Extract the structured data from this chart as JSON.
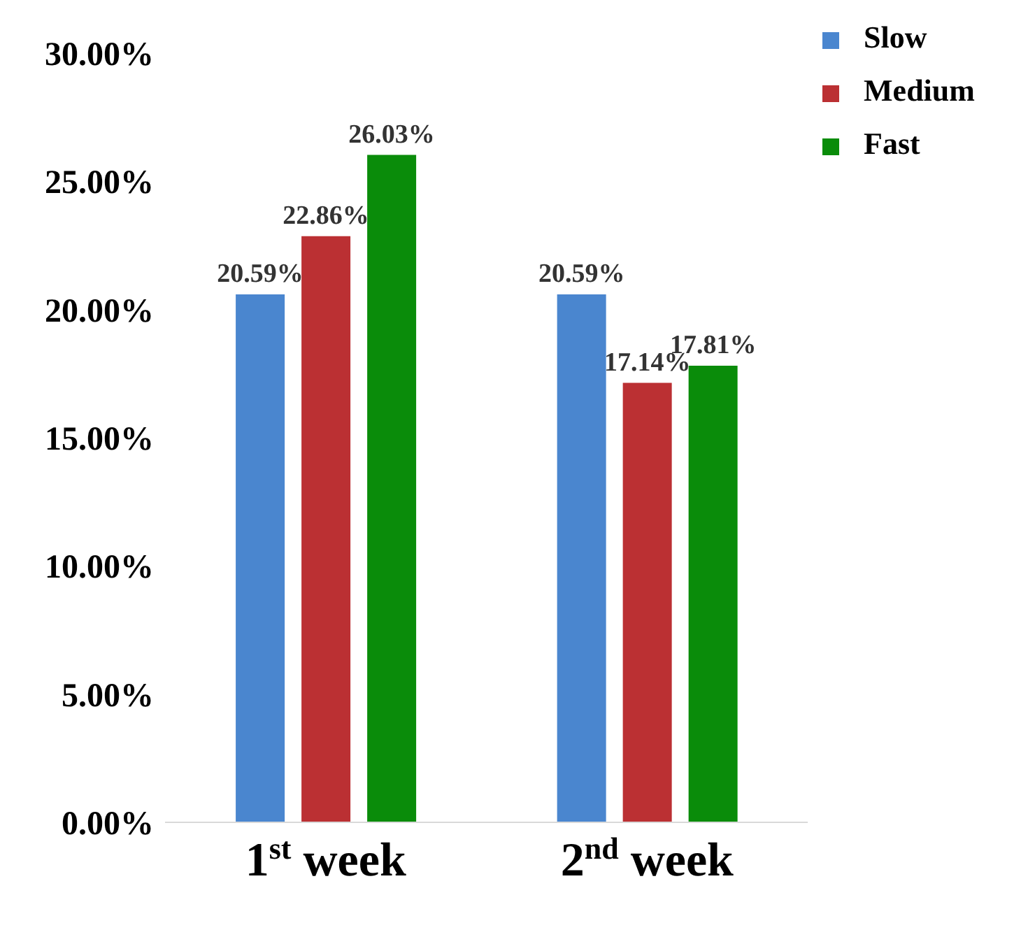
{
  "chart_data": {
    "type": "bar",
    "categories": [
      "1$^{st}$ week",
      "2$^{nd}$ week"
    ],
    "series": [
      {
        "name": "Slow",
        "color": "#4a86cf",
        "values": [
          20.59,
          20.59
        ],
        "value_labels": [
          "20.59%",
          "20.59%"
        ]
      },
      {
        "name": "Medium",
        "color": "#bb3033",
        "values": [
          22.86,
          17.14
        ],
        "value_labels": [
          "22.86%",
          "17.14%"
        ]
      },
      {
        "name": "Fast",
        "color": "#0a8c0a",
        "values": [
          26.03,
          17.81
        ],
        "value_labels": [
          "26.03%",
          "17.81%"
        ]
      }
    ],
    "ylim": [
      0,
      30
    ],
    "yticks": [
      {
        "value": 0,
        "label": "0.00%"
      },
      {
        "value": 5,
        "label": "5.00%"
      },
      {
        "value": 10,
        "label": "10.00%"
      },
      {
        "value": 15,
        "label": "15.00%"
      },
      {
        "value": 20,
        "label": "20.00%"
      },
      {
        "value": 25,
        "label": "25.00%"
      },
      {
        "value": 30,
        "label": "30.00%"
      }
    ],
    "grid": false,
    "legend": "top right"
  }
}
